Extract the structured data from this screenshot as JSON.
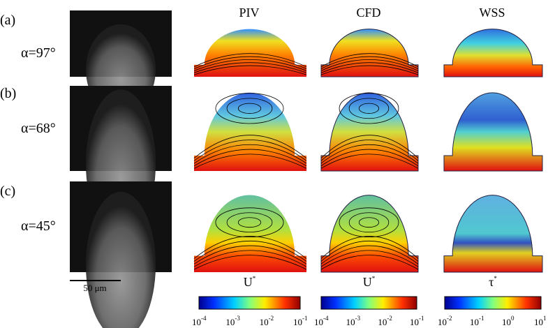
{
  "rows": [
    {
      "label": "(a)",
      "angle": "α=97°"
    },
    {
      "label": "(b)",
      "angle": "α=68°"
    },
    {
      "label": "(c)",
      "angle": "α=45°"
    }
  ],
  "columns": [
    "PIV",
    "CFD",
    "WSS"
  ],
  "scale_bar": "50 μm",
  "colorbars": [
    {
      "symbol": {
        "base": "U",
        "sup": "*"
      },
      "ticks": [
        {
          "base": "10",
          "exp": "-4"
        },
        {
          "base": "10",
          "exp": "-3"
        },
        {
          "base": "10",
          "exp": "-2"
        },
        {
          "base": "10",
          "exp": "-1"
        }
      ]
    },
    {
      "symbol": {
        "base": "U",
        "sup": "*"
      },
      "ticks": [
        {
          "base": "10",
          "exp": "-4"
        },
        {
          "base": "10",
          "exp": "-3"
        },
        {
          "base": "10",
          "exp": "-2"
        },
        {
          "base": "10",
          "exp": "-1"
        }
      ]
    },
    {
      "symbol": {
        "base": "τ",
        "sup": "*"
      },
      "ticks": [
        {
          "base": "10",
          "exp": "-2"
        },
        {
          "base": "10",
          "exp": "-1"
        },
        {
          "base": "10",
          "exp": "0"
        },
        {
          "base": "10",
          "exp": "1"
        }
      ]
    }
  ]
}
